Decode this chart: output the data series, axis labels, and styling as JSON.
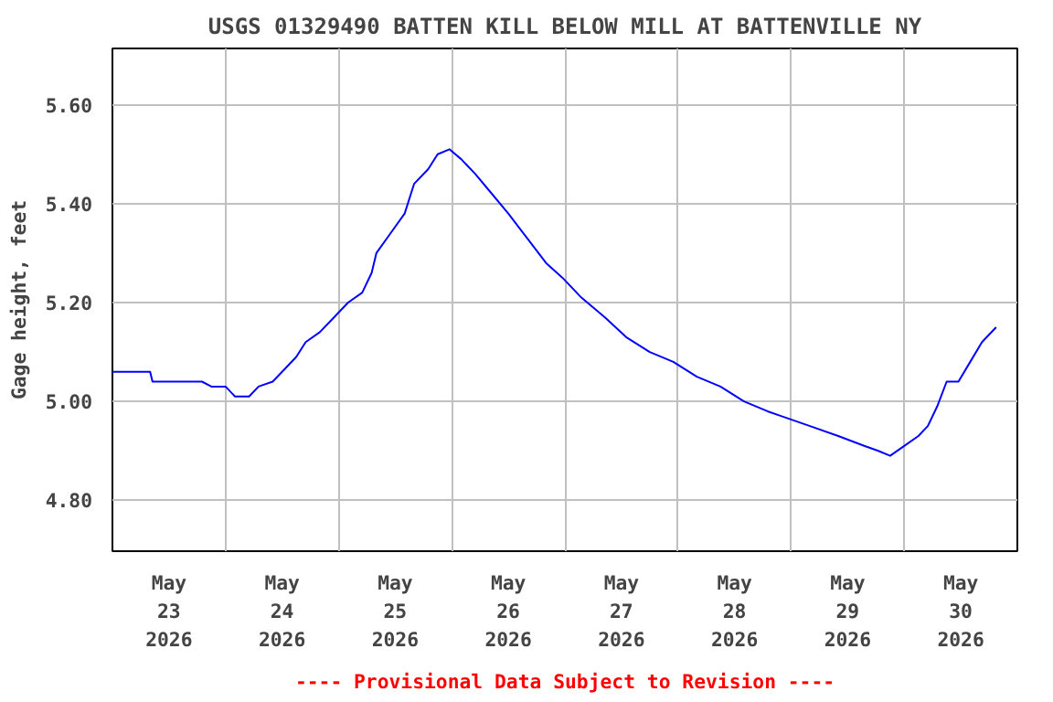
{
  "chart_data": {
    "type": "line",
    "title": "USGS 01329490 BATTEN KILL BELOW MILL AT BATTENVILLE NY",
    "ylabel": "Gage height, feet",
    "annotations": [
      "---- Provisional Data Subject to Revision ----"
    ],
    "x": [
      "2026-05-23T00:00",
      "2026-05-23T08:00",
      "2026-05-23T08:30",
      "2026-05-23T19:00",
      "2026-05-23T21:00",
      "2026-05-24T00:00",
      "2026-05-24T02:00",
      "2026-05-24T05:00",
      "2026-05-24T07:00",
      "2026-05-24T10:00",
      "2026-05-24T12:00",
      "2026-05-24T15:00",
      "2026-05-24T17:00",
      "2026-05-24T20:00",
      "2026-05-24T23:00",
      "2026-05-25T02:00",
      "2026-05-25T05:00",
      "2026-05-25T07:00",
      "2026-05-25T08:00",
      "2026-05-25T11:00",
      "2026-05-25T14:00",
      "2026-05-25T16:00",
      "2026-05-25T19:00",
      "2026-05-25T21:00",
      "2026-05-25T23:30",
      "2026-05-26T02:00",
      "2026-05-26T05:00",
      "2026-05-26T08:30",
      "2026-05-26T12:00",
      "2026-05-26T16:00",
      "2026-05-26T20:00",
      "2026-05-26T23:30",
      "2026-05-27T03:30",
      "2026-05-27T08:30",
      "2026-05-27T13:00",
      "2026-05-27T18:00",
      "2026-05-27T23:00",
      "2026-05-28T04:00",
      "2026-05-28T09:00",
      "2026-05-28T14:00",
      "2026-05-28T19:00",
      "2026-05-28T22:00",
      "2026-05-29T04:00",
      "2026-05-29T10:00",
      "2026-05-29T15:30",
      "2026-05-29T18:30",
      "2026-05-29T21:00",
      "2026-05-30T00:00",
      "2026-05-30T03:00",
      "2026-05-30T05:00",
      "2026-05-30T07:00",
      "2026-05-30T09:00",
      "2026-05-30T11:30",
      "2026-05-30T14:00",
      "2026-05-30T16:30",
      "2026-05-30T19:30"
    ],
    "series": [
      {
        "color": "#0000ff",
        "values": [
          5.06,
          5.06,
          5.04,
          5.04,
          5.03,
          5.03,
          5.01,
          5.01,
          5.03,
          5.04,
          5.06,
          5.09,
          5.12,
          5.14,
          5.17,
          5.2,
          5.22,
          5.26,
          5.3,
          5.34,
          5.38,
          5.44,
          5.47,
          5.5,
          5.51,
          5.49,
          5.46,
          5.42,
          5.38,
          5.33,
          5.28,
          5.25,
          5.21,
          5.17,
          5.13,
          5.1,
          5.08,
          5.05,
          5.03,
          5.0,
          4.98,
          4.97,
          4.95,
          4.93,
          4.91,
          4.9,
          4.89,
          4.91,
          4.93,
          4.95,
          4.99,
          5.04,
          5.04,
          5.08,
          5.12,
          5.15
        ]
      }
    ],
    "xlim": [
      "2026-05-23T00:00",
      "2026-05-31T00:00"
    ],
    "xticks": [
      {
        "value": "2026-05-24T00:00",
        "label": null
      },
      {
        "value": "2026-05-25T00:00",
        "label": null
      },
      {
        "value": "2026-05-26T00:00",
        "label": null
      },
      {
        "value": "2026-05-27T00:00",
        "label": null
      },
      {
        "value": "2026-05-28T00:00",
        "label": null
      },
      {
        "value": "2026-05-29T00:00",
        "label": null
      },
      {
        "value": "2026-05-30T00:00",
        "label": null
      },
      {
        "value": "2026-05-23T12:00",
        "label": "May\n23\n2026"
      },
      {
        "value": "2026-05-24T12:00",
        "label": "May\n24\n2026"
      },
      {
        "value": "2026-05-25T12:00",
        "label": "May\n25\n2026"
      },
      {
        "value": "2026-05-26T12:00",
        "label": "May\n26\n2026"
      },
      {
        "value": "2026-05-27T12:00",
        "label": "May\n27\n2026"
      },
      {
        "value": "2026-05-28T12:00",
        "label": "May\n28\n2026"
      },
      {
        "value": "2026-05-29T12:00",
        "label": "May\n29\n2026"
      },
      {
        "value": "2026-05-30T12:00",
        "label": "May\n30\n2026"
      }
    ],
    "ylim": [
      4.697,
      5.714
    ],
    "yticks": [
      {
        "value": 4.8,
        "label": "4.80"
      },
      {
        "value": 5.0,
        "label": "5.00"
      },
      {
        "value": 5.2,
        "label": "5.20"
      },
      {
        "value": 5.4,
        "label": "5.40"
      },
      {
        "value": 5.6,
        "label": "5.60"
      }
    ],
    "grid": true
  }
}
